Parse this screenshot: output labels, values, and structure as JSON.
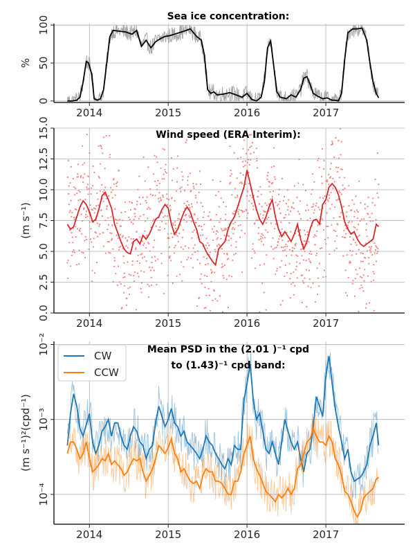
{
  "chart_data": [
    {
      "type": "line",
      "title": "Sea ice concentration:",
      "ylabel": "%",
      "xlim": [
        2013.55,
        2018.0
      ],
      "ylim": [
        -2,
        102
      ],
      "xticks": [
        2014,
        2015,
        2016,
        2017
      ],
      "xtick_labels": [
        "2014",
        "2015",
        "2016",
        "2017"
      ],
      "yticks": [
        0,
        50,
        100
      ],
      "ytick_labels": [
        "0",
        "50",
        "100"
      ],
      "grid": true,
      "colors": {
        "smoothed": "#000000",
        "raw": "#a8a8a8"
      },
      "series": [
        {
          "x": [
            2013.72,
            2013.78,
            2013.84,
            2013.88,
            2013.92,
            2013.96,
            2013.99,
            2014.03,
            2014.06,
            2014.1,
            2014.14,
            2014.18,
            2014.22,
            2014.26,
            2014.3,
            2014.38,
            2014.46,
            2014.54,
            2014.6,
            2014.66,
            2014.72,
            2014.78,
            2014.84,
            2014.9,
            2014.96,
            2015.02,
            2015.08,
            2015.14,
            2015.2,
            2015.28,
            2015.36,
            2015.42,
            2015.46,
            2015.5,
            2015.54,
            2015.58,
            2015.62,
            2015.7,
            2015.78,
            2015.86,
            2015.94,
            2016.0,
            2016.06,
            2016.12,
            2016.18,
            2016.22,
            2016.26,
            2016.3,
            2016.34,
            2016.38,
            2016.42,
            2016.5,
            2016.56,
            2016.62,
            2016.68,
            2016.72,
            2016.76,
            2016.8,
            2016.84,
            2016.9,
            2016.96,
            2017.02,
            2017.08,
            2017.12,
            2017.16,
            2017.2,
            2017.24,
            2017.28,
            2017.34,
            2017.4,
            2017.46,
            2017.52,
            2017.56,
            2017.6,
            2017.64,
            2017.67
          ],
          "values": [
            0,
            0,
            1,
            5,
            25,
            52,
            50,
            35,
            3,
            1,
            3,
            15,
            50,
            85,
            93,
            92,
            91,
            88,
            93,
            72,
            80,
            70,
            78,
            82,
            85,
            86,
            88,
            90,
            92,
            95,
            85,
            80,
            60,
            15,
            10,
            12,
            8,
            9,
            11,
            8,
            5,
            10,
            2,
            0,
            5,
            25,
            70,
            79,
            45,
            12,
            5,
            3,
            8,
            5,
            15,
            30,
            32,
            22,
            10,
            6,
            3,
            4,
            1,
            1,
            0,
            10,
            55,
            90,
            95,
            95,
            96,
            80,
            50,
            25,
            10,
            4
          ]
        }
      ]
    },
    {
      "type": "scatter",
      "title": "Wind speed (ERA Interim):",
      "ylabel": "(m s⁻¹)",
      "xlim": [
        2013.55,
        2018.0
      ],
      "ylim": [
        0,
        15
      ],
      "xticks": [
        2014,
        2015,
        2016,
        2017
      ],
      "xtick_labels": [
        "2014",
        "2015",
        "2016",
        "2017"
      ],
      "yticks": [
        0,
        2.5,
        5,
        7.5,
        10,
        12.5,
        15
      ],
      "ytick_labels": [
        "0.0",
        "2.5",
        "5.0",
        "7.5",
        "10.0",
        "12.5",
        "15.0"
      ],
      "grid": true,
      "colors": {
        "smoothed": "#d62728",
        "raw": "#f4817b"
      },
      "series": [
        {
          "x": [
            2013.72,
            2013.76,
            2013.8,
            2013.84,
            2013.88,
            2013.92,
            2013.96,
            2014.0,
            2014.04,
            2014.08,
            2014.12,
            2014.16,
            2014.2,
            2014.24,
            2014.28,
            2014.32,
            2014.36,
            2014.4,
            2014.44,
            2014.48,
            2014.52,
            2014.56,
            2014.6,
            2014.64,
            2014.68,
            2014.72,
            2014.76,
            2014.8,
            2014.84,
            2014.88,
            2014.92,
            2014.96,
            2015.0,
            2015.04,
            2015.08,
            2015.12,
            2015.16,
            2015.2,
            2015.24,
            2015.28,
            2015.32,
            2015.36,
            2015.4,
            2015.44,
            2015.48,
            2015.52,
            2015.56,
            2015.6,
            2015.64,
            2015.68,
            2015.72,
            2015.76,
            2015.8,
            2015.84,
            2015.88,
            2015.92,
            2015.96,
            2016.0,
            2016.04,
            2016.08,
            2016.12,
            2016.16,
            2016.2,
            2016.24,
            2016.28,
            2016.32,
            2016.36,
            2016.4,
            2016.44,
            2016.48,
            2016.52,
            2016.56,
            2016.6,
            2016.64,
            2016.68,
            2016.72,
            2016.76,
            2016.8,
            2016.84,
            2016.88,
            2016.92,
            2016.96,
            2017.0,
            2017.04,
            2017.08,
            2017.12,
            2017.16,
            2017.2,
            2017.24,
            2017.28,
            2017.32,
            2017.36,
            2017.4,
            2017.44,
            2017.48,
            2017.52,
            2017.56,
            2017.6,
            2017.64,
            2017.67
          ],
          "values": [
            7.2,
            6.8,
            7.0,
            7.8,
            8.6,
            9.1,
            8.8,
            8.2,
            7.4,
            7.6,
            8.4,
            9.5,
            9.8,
            9.2,
            8.5,
            7.2,
            6.5,
            5.8,
            5.2,
            4.9,
            4.8,
            5.8,
            6.0,
            5.6,
            6.3,
            6.0,
            6.4,
            7.0,
            7.6,
            7.8,
            8.4,
            8.8,
            8.5,
            7.2,
            6.4,
            6.8,
            7.5,
            8.2,
            8.6,
            8.2,
            7.4,
            6.8,
            5.8,
            5.6,
            5.0,
            4.6,
            4.2,
            3.9,
            5.2,
            5.5,
            5.8,
            6.8,
            7.4,
            7.8,
            8.6,
            9.4,
            10.2,
            11.6,
            10.5,
            9.4,
            8.4,
            7.6,
            7.2,
            7.8,
            8.6,
            9.2,
            7.8,
            6.8,
            6.2,
            6.6,
            6.2,
            5.8,
            6.4,
            7.2,
            6.0,
            5.2,
            5.8,
            6.8,
            7.5,
            7.6,
            7.2,
            8.8,
            9.2,
            10.2,
            10.5,
            10.2,
            9.6,
            8.6,
            7.4,
            6.8,
            6.4,
            6.6,
            6.0,
            5.6,
            5.4,
            5.6,
            5.8,
            6.0,
            7.2,
            7.0
          ]
        }
      ]
    },
    {
      "type": "line",
      "title_lines": [
        "Mean PSD in the (2.01 )⁻¹ cpd",
        "to (1.43)⁻¹ cpd band:"
      ],
      "ylabel": "(m s⁻¹)²(cpd⁻¹)",
      "yscale": "log",
      "xlim": [
        2013.55,
        2018.0
      ],
      "ylim": [
        4e-05,
        0.011
      ],
      "xticks": [
        2014,
        2015,
        2016,
        2017
      ],
      "xtick_labels": [
        "2014",
        "2015",
        "2016",
        "2017"
      ],
      "yticks": [
        0.0001,
        0.001,
        0.01
      ],
      "ytick_labels": [
        "10⁻⁴",
        "10⁻³",
        "10⁻²"
      ],
      "grid": true,
      "legend": "top-left",
      "series": [
        {
          "name": "CW",
          "color": "#1f77b4",
          "x": [
            2013.72,
            2013.76,
            2013.8,
            2013.84,
            2013.88,
            2013.92,
            2013.96,
            2014.0,
            2014.04,
            2014.08,
            2014.12,
            2014.16,
            2014.2,
            2014.24,
            2014.28,
            2014.32,
            2014.36,
            2014.4,
            2014.44,
            2014.48,
            2014.52,
            2014.56,
            2014.6,
            2014.64,
            2014.68,
            2014.72,
            2014.76,
            2014.8,
            2014.84,
            2014.88,
            2014.92,
            2014.96,
            2015.0,
            2015.04,
            2015.08,
            2015.12,
            2015.16,
            2015.2,
            2015.24,
            2015.28,
            2015.32,
            2015.36,
            2015.4,
            2015.44,
            2015.48,
            2015.52,
            2015.56,
            2015.6,
            2015.64,
            2015.68,
            2015.72,
            2015.76,
            2015.8,
            2015.84,
            2015.88,
            2015.92,
            2015.96,
            2016.0,
            2016.04,
            2016.08,
            2016.12,
            2016.16,
            2016.2,
            2016.24,
            2016.28,
            2016.32,
            2016.36,
            2016.4,
            2016.44,
            2016.48,
            2016.52,
            2016.56,
            2016.6,
            2016.64,
            2016.68,
            2016.72,
            2016.76,
            2016.8,
            2016.84,
            2016.88,
            2016.92,
            2016.96,
            2017.0,
            2017.04,
            2017.08,
            2017.12,
            2017.16,
            2017.2,
            2017.24,
            2017.28,
            2017.32,
            2017.36,
            2017.4,
            2017.44,
            2017.48,
            2017.52,
            2017.56,
            2017.6,
            2017.64,
            2017.67
          ],
          "values": [
            0.00045,
            0.0012,
            0.0022,
            0.0015,
            0.00075,
            0.0006,
            0.00085,
            0.0012,
            0.0005,
            0.00035,
            0.00045,
            0.0007,
            0.0008,
            0.001,
            0.0006,
            0.0009,
            0.0009,
            0.0006,
            0.00045,
            0.0004,
            0.0006,
            0.0008,
            0.0007,
            0.0005,
            0.00045,
            0.0003,
            0.0004,
            0.00045,
            0.0009,
            0.0015,
            0.0011,
            0.0008,
            0.001,
            0.0014,
            0.0009,
            0.0008,
            0.0006,
            0.0007,
            0.0005,
            0.00045,
            0.0004,
            0.00035,
            0.0003,
            0.0004,
            0.0006,
            0.0005,
            0.00045,
            0.00035,
            0.0003,
            0.00025,
            0.00022,
            0.0003,
            0.00025,
            0.00045,
            0.0004,
            0.0004,
            0.0018,
            0.003,
            0.0055,
            0.0018,
            0.001,
            0.0012,
            0.0007,
            0.0004,
            0.00035,
            0.0005,
            0.00035,
            0.00025,
            0.0005,
            0.001,
            0.0007,
            0.0005,
            0.0004,
            0.0005,
            0.0003,
            0.0002,
            0.00035,
            0.0004,
            0.0008,
            0.002,
            0.0015,
            0.0011,
            0.0038,
            0.007,
            0.003,
            0.0014,
            0.0008,
            0.0005,
            0.0003,
            0.0004,
            0.0002,
            0.00015,
            0.00016,
            0.00017,
            0.0002,
            0.00025,
            0.00045,
            0.0006,
            0.0009,
            0.00045
          ]
        },
        {
          "name": "CCW",
          "color": "#ff7f0e",
          "x": [
            2013.72,
            2013.76,
            2013.8,
            2013.84,
            2013.88,
            2013.92,
            2013.96,
            2014.0,
            2014.04,
            2014.08,
            2014.12,
            2014.16,
            2014.2,
            2014.24,
            2014.28,
            2014.32,
            2014.36,
            2014.4,
            2014.44,
            2014.48,
            2014.52,
            2014.56,
            2014.6,
            2014.64,
            2014.68,
            2014.72,
            2014.76,
            2014.8,
            2014.84,
            2014.88,
            2014.92,
            2014.96,
            2015.0,
            2015.04,
            2015.08,
            2015.12,
            2015.16,
            2015.2,
            2015.24,
            2015.28,
            2015.32,
            2015.36,
            2015.4,
            2015.44,
            2015.48,
            2015.52,
            2015.56,
            2015.6,
            2015.64,
            2015.68,
            2015.72,
            2015.76,
            2015.8,
            2015.84,
            2015.88,
            2015.92,
            2015.96,
            2016.0,
            2016.04,
            2016.08,
            2016.12,
            2016.16,
            2016.2,
            2016.24,
            2016.28,
            2016.32,
            2016.36,
            2016.4,
            2016.44,
            2016.48,
            2016.52,
            2016.56,
            2016.6,
            2016.64,
            2016.68,
            2016.72,
            2016.76,
            2016.8,
            2016.84,
            2016.88,
            2016.92,
            2016.96,
            2017.0,
            2017.04,
            2017.08,
            2017.12,
            2017.16,
            2017.2,
            2017.24,
            2017.28,
            2017.32,
            2017.36,
            2017.4,
            2017.44,
            2017.48,
            2017.52,
            2017.56,
            2017.6,
            2017.64,
            2017.67
          ],
          "values": [
            0.00035,
            0.0005,
            0.0005,
            0.0004,
            0.0003,
            0.00035,
            0.0005,
            0.0003,
            0.0002,
            0.00022,
            0.00025,
            0.0003,
            0.00028,
            0.00035,
            0.00025,
            0.00028,
            0.00025,
            0.00022,
            0.00018,
            0.0002,
            0.00025,
            0.0003,
            0.00028,
            0.0003,
            0.0002,
            0.00015,
            0.00018,
            0.00022,
            0.0003,
            0.00045,
            0.0004,
            0.00035,
            0.00042,
            0.00055,
            0.00035,
            0.0003,
            0.0002,
            0.00022,
            0.00018,
            0.00015,
            0.00014,
            0.00015,
            0.00012,
            0.00018,
            0.00022,
            0.0002,
            0.0002,
            0.00015,
            0.00015,
            0.00014,
            0.00012,
            0.0001,
            0.0001,
            0.00015,
            0.00015,
            0.0002,
            0.00035,
            0.00045,
            0.0006,
            0.0003,
            0.00022,
            0.00018,
            0.00014,
            0.00011,
            0.0001,
            9e-05,
            8e-05,
            0.0001,
            9e-05,
            0.0001,
            0.00012,
            0.0001,
            0.00012,
            0.00022,
            0.00025,
            0.00035,
            0.0005,
            0.00055,
            0.00075,
            0.0006,
            0.0005,
            0.0005,
            0.00045,
            0.0006,
            0.0005,
            0.0003,
            0.00025,
            0.00018,
            0.00011,
            0.0001,
            8e-05,
            6e-05,
            5e-05,
            6e-05,
            9e-05,
            0.0001,
            0.00011,
            0.00012,
            0.00016,
            0.00017
          ]
        }
      ]
    }
  ]
}
